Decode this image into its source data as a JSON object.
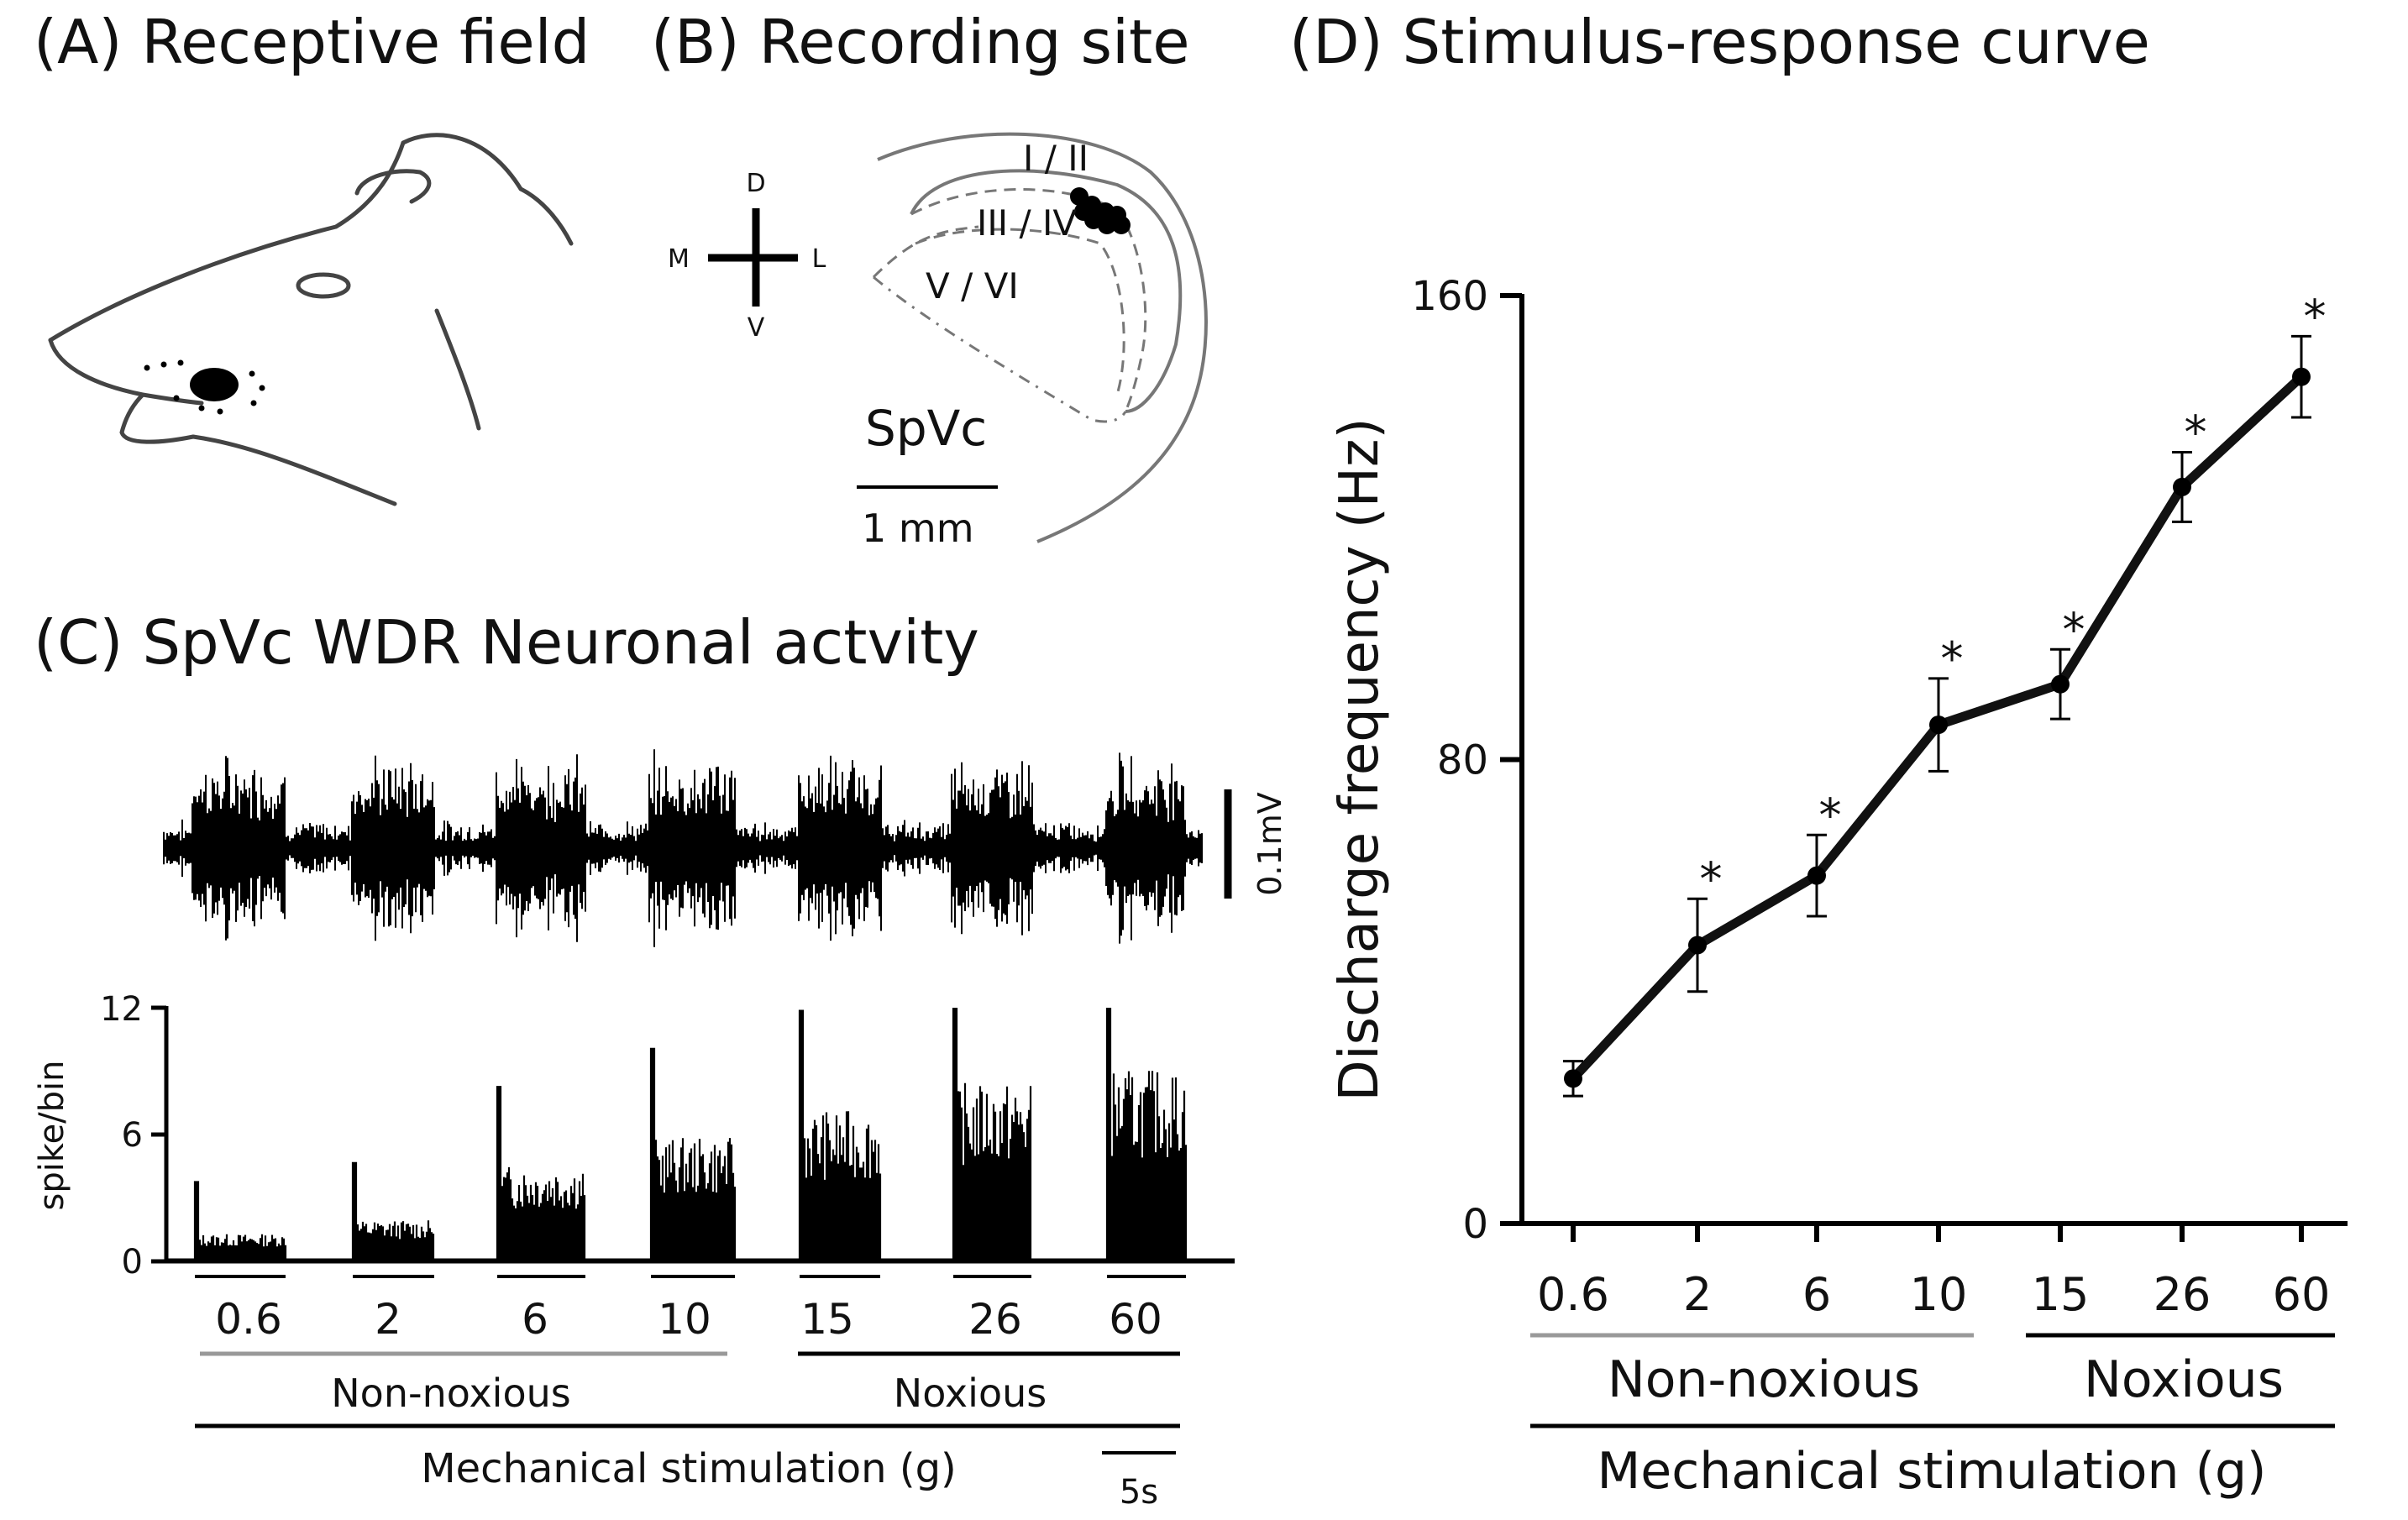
{
  "panels": {
    "a": {
      "title": "(A) Receptive field"
    },
    "b": {
      "title": "(B) Recording site",
      "compass": {
        "d": "D",
        "v": "V",
        "m": "M",
        "l": "L"
      },
      "laminae": [
        "I / II",
        "III / IV",
        "V / VI"
      ],
      "region_label": "SpVc",
      "scale_label": "1 mm"
    },
    "c": {
      "title": "(C) SpVc WDR Neuronal actvity",
      "trace_scale_label": "0.1mV",
      "hist_ylabel": "spike/bin",
      "hist_yticks": [
        "12",
        "6",
        "0"
      ],
      "stim_labels": [
        "0.6",
        "2",
        "6",
        "10",
        "15",
        "26",
        "60"
      ],
      "group_nonnoxious": "Non-noxious",
      "group_noxious": "Noxious",
      "xlabel": "Mechanical stimulation (g)",
      "time_scale_label": "5s",
      "hist_levels": [
        1,
        1.5,
        3.5,
        4.5,
        5.5,
        6.5,
        7
      ]
    },
    "d": {
      "title": "(D) Stimulus-response curve"
    }
  },
  "chart_data": {
    "type": "line",
    "title": "(D) Stimulus-response curve",
    "ylabel": "Discharge frequency (Hz)",
    "xlabel": "Mechanical stimulation (g)",
    "categories": [
      "0.6",
      "2",
      "6",
      "10",
      "15",
      "26",
      "60"
    ],
    "values": [
      25,
      48,
      60,
      86,
      93,
      127,
      146
    ],
    "errors": [
      3,
      8,
      7,
      8,
      6,
      6,
      7
    ],
    "significant": [
      false,
      true,
      true,
      true,
      true,
      true,
      true
    ],
    "significance_marker": "*",
    "ylim": [
      0,
      160
    ],
    "yticks": [
      "0",
      "80",
      "160"
    ],
    "groups": [
      {
        "name": "Non-noxious",
        "from": "0.6",
        "to": "10"
      },
      {
        "name": "Noxious",
        "from": "15",
        "to": "60"
      }
    ]
  }
}
